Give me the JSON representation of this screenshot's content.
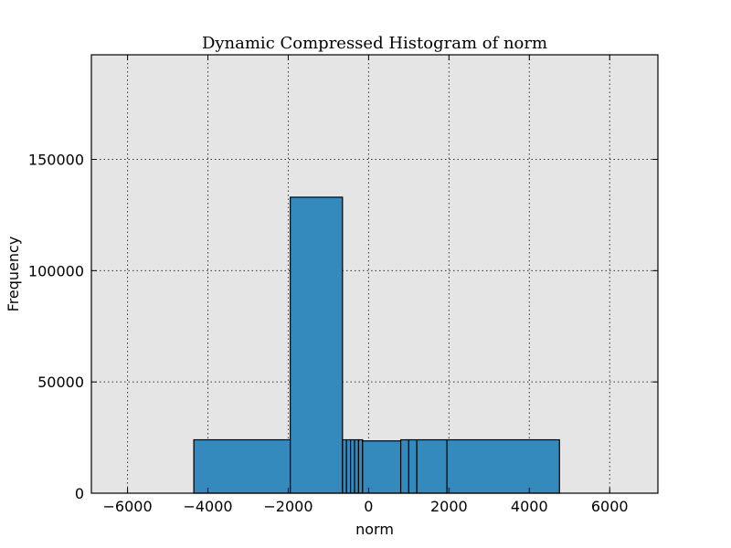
{
  "chart_data": {
    "type": "bar",
    "title": "Dynamic Compressed Histogram of norm",
    "xlabel": "norm",
    "ylabel": "Frequency",
    "xlim": [
      -6900,
      7200
    ],
    "ylim": [
      0,
      197000
    ],
    "grid": true,
    "bar_color": "#348abd",
    "background_color": "#e5e5e5",
    "x_ticks": [
      -6000,
      -4000,
      -2000,
      0,
      2000,
      4000,
      6000
    ],
    "x_tick_labels": [
      "−6000",
      "−4000",
      "−2000",
      "0",
      "2000",
      "4000",
      "6000"
    ],
    "y_ticks": [
      0,
      50000,
      100000,
      150000
    ],
    "y_tick_labels": [
      "0",
      "50000",
      "100000",
      "150000"
    ],
    "bins": [
      {
        "left": -4350,
        "right": -1950,
        "value": 24000
      },
      {
        "left": -1950,
        "right": -650,
        "value": 133000
      },
      {
        "left": -650,
        "right": -550,
        "value": 24000
      },
      {
        "left": -550,
        "right": -450,
        "value": 24000
      },
      {
        "left": -450,
        "right": -350,
        "value": 24000
      },
      {
        "left": -350,
        "right": -250,
        "value": 24000
      },
      {
        "left": -250,
        "right": -150,
        "value": 24000
      },
      {
        "left": -150,
        "right": 800,
        "value": 23500
      },
      {
        "left": 800,
        "right": 1000,
        "value": 24000
      },
      {
        "left": 1000,
        "right": 1200,
        "value": 24000
      },
      {
        "left": 1200,
        "right": 1950,
        "value": 24000
      },
      {
        "left": 1950,
        "right": 4750,
        "value": 24000
      }
    ]
  }
}
